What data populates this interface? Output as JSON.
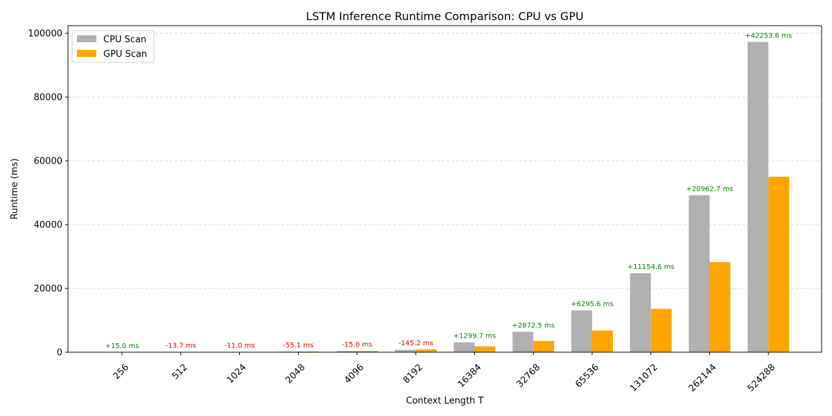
{
  "chart_data": {
    "type": "bar",
    "title": "LSTM Inference Runtime Comparison: CPU vs GPU",
    "xlabel": "Context Length T",
    "ylabel": "Runtime (ms)",
    "categories": [
      "256",
      "512",
      "1024",
      "2048",
      "4096",
      "8192",
      "16384",
      "32768",
      "65536",
      "131072",
      "262144",
      "524288"
    ],
    "series": [
      {
        "name": "CPU Scan",
        "color": "#b0b0b0",
        "values": [
          40,
          55,
          110,
          195,
          385,
          760,
          3100,
          6400,
          13100,
          24750,
          49200,
          97300
        ]
      },
      {
        "name": "GPU Scan",
        "color": "#ffa500",
        "values": [
          25,
          69,
          121,
          250,
          400,
          905,
          1800,
          3527,
          6804,
          13595,
          28237,
          55046
        ]
      }
    ],
    "annotations": [
      "+15.0 ms",
      "-13.7 ms",
      "-11.0 ms",
      "-55.1 ms",
      "-15.0 ms",
      "-145.2 ms",
      "+1299.7 ms",
      "+2872.5 ms",
      "+6295.6 ms",
      "+11154.6 ms",
      "+20962.7 ms",
      "+42253.6 ms"
    ],
    "annotation_colors": {
      "positive": "#008000",
      "negative": "#dd0000"
    },
    "ylim": [
      0,
      102400
    ],
    "yticks": [
      0,
      20000,
      40000,
      60000,
      80000,
      100000
    ],
    "ytick_labels": [
      "0",
      "20000",
      "40000",
      "60000",
      "80000",
      "100000"
    ],
    "grid": "y-dashed",
    "legend_position": "upper-left"
  }
}
